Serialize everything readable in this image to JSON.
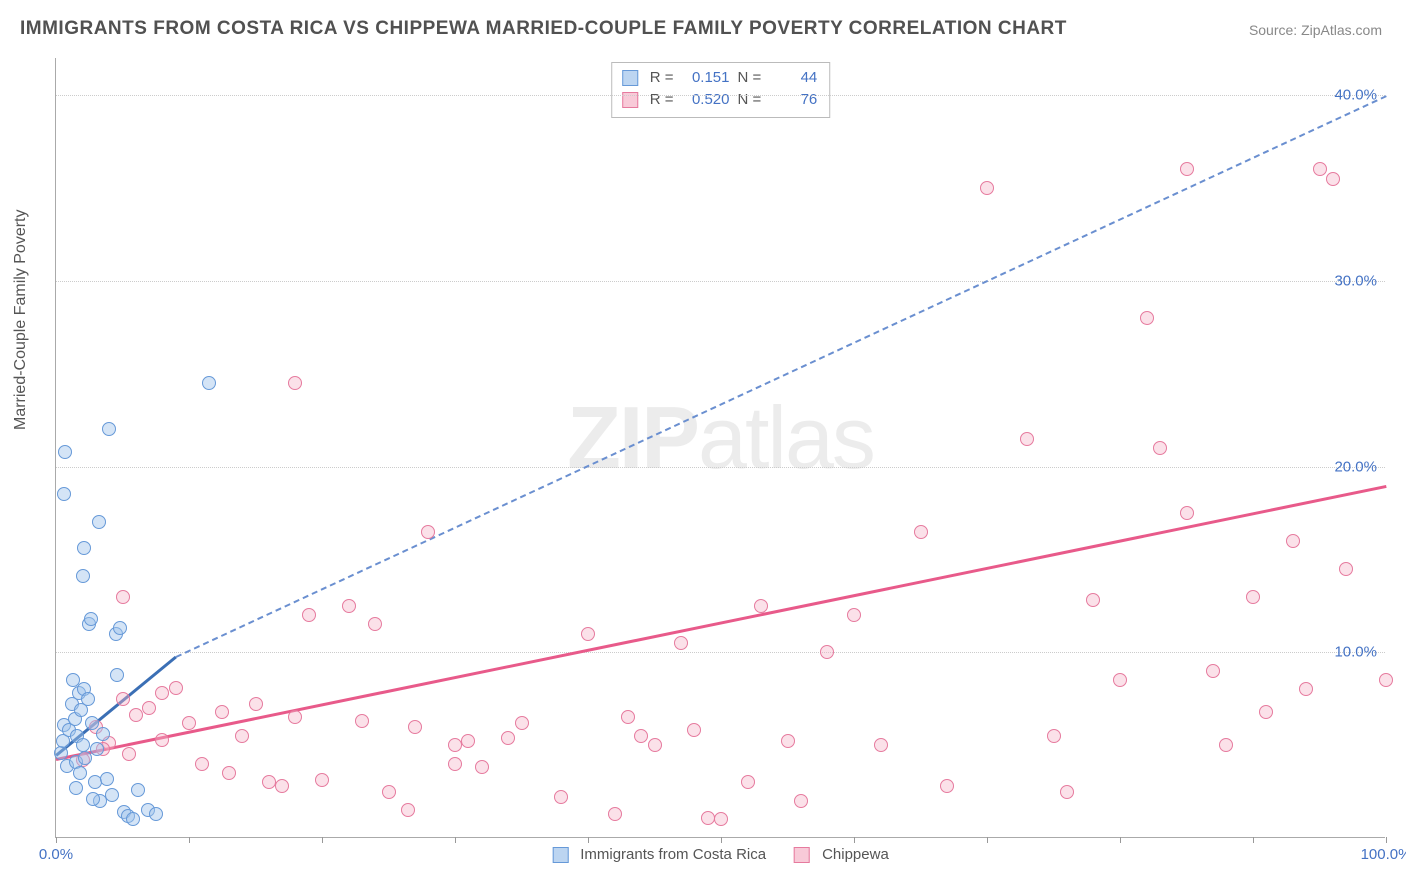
{
  "title": "IMMIGRANTS FROM COSTA RICA VS CHIPPEWA MARRIED-COUPLE FAMILY POVERTY CORRELATION CHART",
  "source": "Source: ZipAtlas.com",
  "y_label": "Married-Couple Family Poverty",
  "watermark_zip": "ZIP",
  "watermark_atlas": "atlas",
  "chart": {
    "type": "scatter",
    "background_color": "#ffffff",
    "grid_color": "#cccccc",
    "axis_color": "#aaaaaa",
    "marker_radius": 7,
    "xlim": [
      0,
      100
    ],
    "ylim": [
      0,
      42
    ],
    "x_ticks": [
      0,
      10,
      20,
      30,
      40,
      50,
      60,
      70,
      80,
      90,
      100
    ],
    "x_tick_labels": {
      "0": "0.0%",
      "100": "100.0%"
    },
    "y_gridlines": [
      10,
      20,
      30,
      40
    ],
    "y_tick_labels": {
      "10": "10.0%",
      "20": "20.0%",
      "30": "30.0%",
      "40": "40.0%"
    },
    "tick_color": "#4472c4",
    "tick_fontsize": 15,
    "label_color": "#555555",
    "label_fontsize": 16
  },
  "series": {
    "blue": {
      "name": "Immigrants from Costa Rica",
      "fill_color": "rgba(160,195,235,0.45)",
      "stroke_color": "#6699d8",
      "R": "0.151",
      "N": "44",
      "regression": {
        "x1": 0,
        "y1": 4.5,
        "x2": 9,
        "y2": 9.8,
        "extrapolate_x2": 100,
        "extrapolate_y2": 40.0,
        "solid_color": "#3b6fb5",
        "dash_color": "#6a8fd0"
      },
      "points": [
        [
          0.4,
          4.6
        ],
        [
          0.5,
          5.2
        ],
        [
          0.6,
          6.1
        ],
        [
          0.8,
          3.9
        ],
        [
          1,
          5.8
        ],
        [
          1.2,
          7.2
        ],
        [
          1.3,
          8.5
        ],
        [
          1.4,
          6.4
        ],
        [
          1.5,
          4.1
        ],
        [
          1.6,
          5.5
        ],
        [
          1.7,
          7.8
        ],
        [
          1.8,
          3.5
        ],
        [
          1.9,
          6.9
        ],
        [
          2,
          5.0
        ],
        [
          2.1,
          8.0
        ],
        [
          2.2,
          4.3
        ],
        [
          2.4,
          7.5
        ],
        [
          2.5,
          11.5
        ],
        [
          2.6,
          11.8
        ],
        [
          2.7,
          6.2
        ],
        [
          2.9,
          3.0
        ],
        [
          3.1,
          4.8
        ],
        [
          3.3,
          2.0
        ],
        [
          3.5,
          5.6
        ],
        [
          3.8,
          3.2
        ],
        [
          4.2,
          2.3
        ],
        [
          4.5,
          11.0
        ],
        [
          4.8,
          11.3
        ],
        [
          5.1,
          1.4
        ],
        [
          5.4,
          1.2
        ],
        [
          5.8,
          1.0
        ],
        [
          6.2,
          2.6
        ],
        [
          6.9,
          1.5
        ],
        [
          7.5,
          1.3
        ],
        [
          0.6,
          18.5
        ],
        [
          0.7,
          20.8
        ],
        [
          2.0,
          14.1
        ],
        [
          2.1,
          15.6
        ],
        [
          3.2,
          17.0
        ],
        [
          4.0,
          22.0
        ],
        [
          11.5,
          24.5
        ],
        [
          1.5,
          2.7
        ],
        [
          2.8,
          2.1
        ],
        [
          4.6,
          8.8
        ]
      ]
    },
    "pink": {
      "name": "Chippewa",
      "fill_color": "rgba(245,180,200,0.4)",
      "stroke_color": "#e67a9e",
      "R": "0.520",
      "N": "76",
      "regression": {
        "x1": 0,
        "y1": 4.3,
        "x2": 100,
        "y2": 19.0,
        "color": "#e85a8a"
      },
      "points": [
        [
          2,
          4.2
        ],
        [
          3,
          6.0
        ],
        [
          4,
          5.1
        ],
        [
          5,
          7.5
        ],
        [
          5.5,
          4.5
        ],
        [
          6,
          6.6
        ],
        [
          7,
          7.0
        ],
        [
          8,
          5.3
        ],
        [
          9,
          8.1
        ],
        [
          10,
          6.2
        ],
        [
          11,
          4.0
        ],
        [
          12.5,
          6.8
        ],
        [
          13,
          3.5
        ],
        [
          14,
          5.5
        ],
        [
          15,
          7.2
        ],
        [
          16,
          3.0
        ],
        [
          17,
          2.8
        ],
        [
          18,
          6.5
        ],
        [
          19,
          12.0
        ],
        [
          20,
          3.1
        ],
        [
          22,
          12.5
        ],
        [
          23,
          6.3
        ],
        [
          25,
          2.5
        ],
        [
          26.5,
          1.5
        ],
        [
          27,
          6.0
        ],
        [
          28,
          16.5
        ],
        [
          30,
          5.0
        ],
        [
          31,
          5.2
        ],
        [
          32,
          3.8
        ],
        [
          34,
          5.4
        ],
        [
          38,
          2.2
        ],
        [
          40,
          11.0
        ],
        [
          42,
          1.3
        ],
        [
          44,
          5.5
        ],
        [
          45,
          5.0
        ],
        [
          47,
          10.5
        ],
        [
          48,
          5.8
        ],
        [
          49,
          1.1
        ],
        [
          50,
          1.0
        ],
        [
          52,
          3.0
        ],
        [
          53,
          12.5
        ],
        [
          55,
          5.2
        ],
        [
          58,
          10.0
        ],
        [
          62,
          5.0
        ],
        [
          65,
          16.5
        ],
        [
          67,
          2.8
        ],
        [
          70,
          35.0
        ],
        [
          73,
          21.5
        ],
        [
          75,
          5.5
        ],
        [
          76,
          2.5
        ],
        [
          78,
          12.8
        ],
        [
          80,
          8.5
        ],
        [
          82,
          28.0
        ],
        [
          83,
          21.0
        ],
        [
          85,
          17.5
        ],
        [
          85,
          36.0
        ],
        [
          87,
          9.0
        ],
        [
          88,
          5.0
        ],
        [
          90,
          13.0
        ],
        [
          91,
          6.8
        ],
        [
          93,
          16.0
        ],
        [
          94,
          8.0
        ],
        [
          95,
          36.0
        ],
        [
          96,
          35.5
        ],
        [
          97,
          14.5
        ],
        [
          100,
          8.5
        ],
        [
          5,
          13.0
        ],
        [
          18,
          24.5
        ],
        [
          35,
          6.2
        ],
        [
          60,
          12.0
        ],
        [
          43,
          6.5
        ],
        [
          56,
          2.0
        ],
        [
          30,
          4.0
        ],
        [
          24,
          11.5
        ],
        [
          8,
          7.8
        ],
        [
          3.5,
          4.8
        ]
      ]
    }
  },
  "stats_labels": {
    "R": "R =",
    "N": "N ="
  },
  "legend": {
    "blue_label": "Immigrants from Costa Rica",
    "pink_label": "Chippewa"
  }
}
